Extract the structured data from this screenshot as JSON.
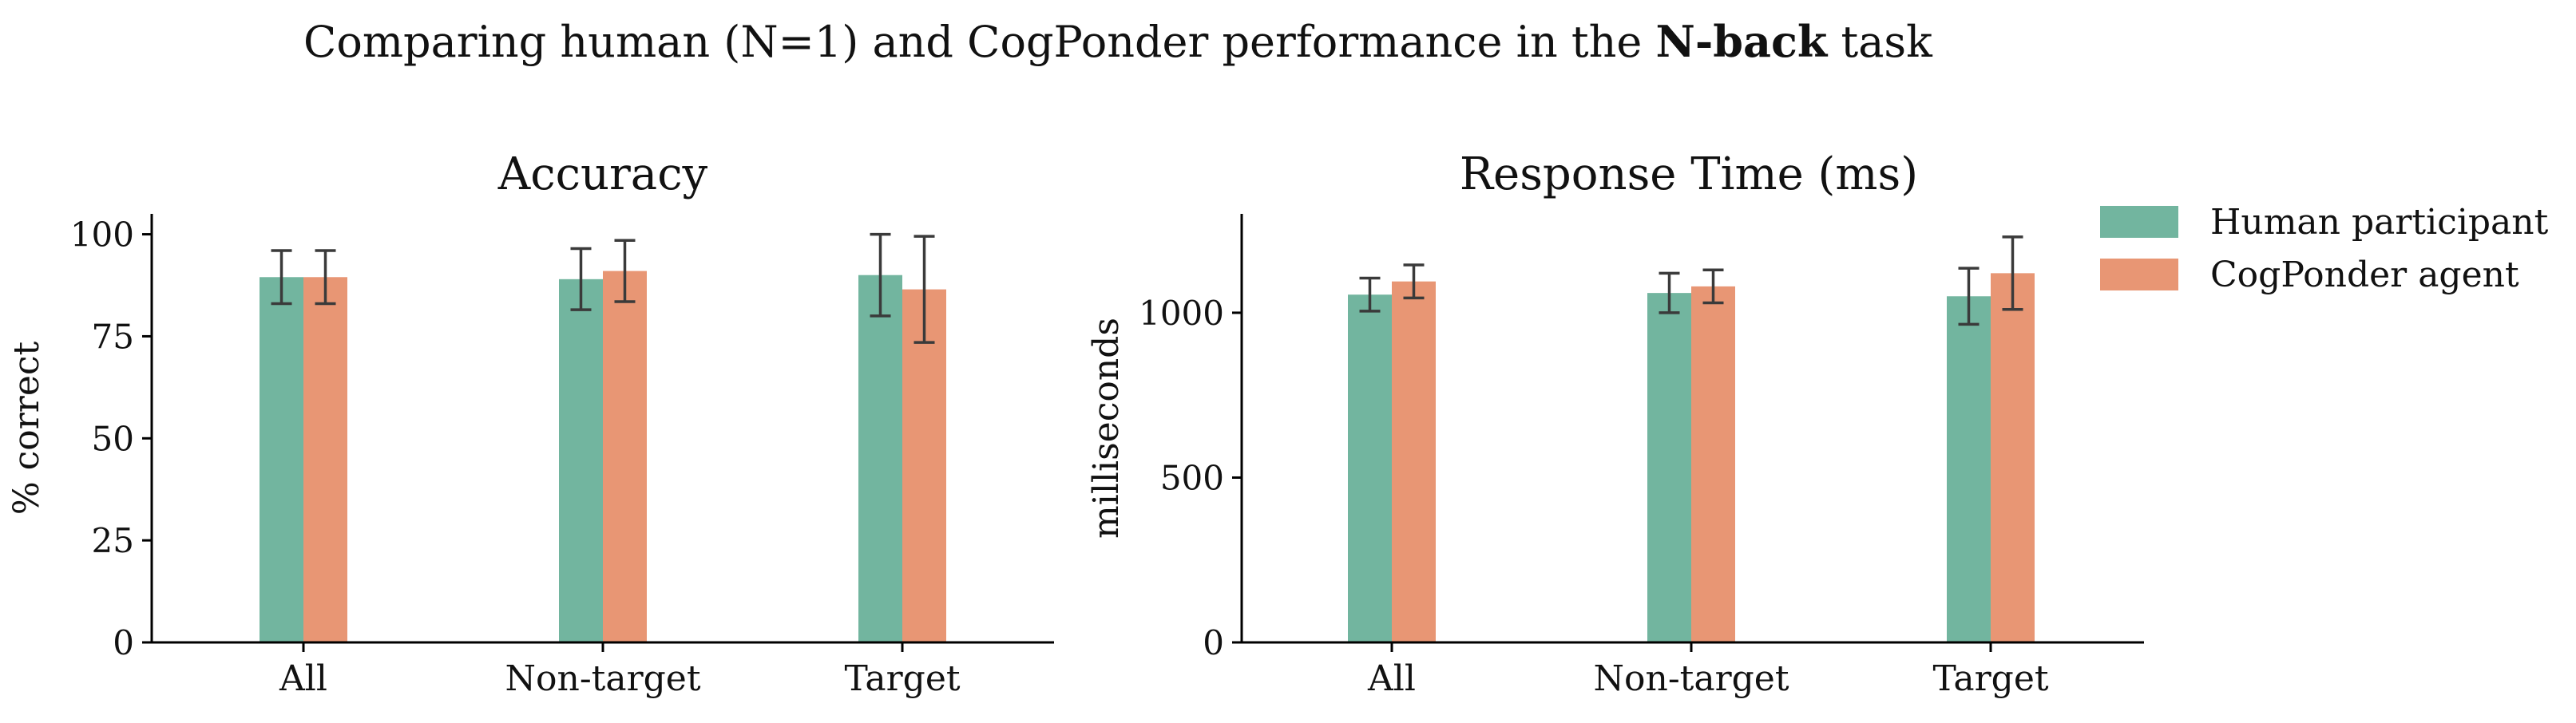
{
  "figure": {
    "title_prefix": "Comparing human (N=1) and CogPonder performance in the ",
    "title_bold": "N-back",
    "title_suffix": " task"
  },
  "legend": [
    {
      "label": "Human participant",
      "color": "#72b59f"
    },
    {
      "label": "CogPonder agent",
      "color": "#e89674"
    }
  ],
  "chart_data": [
    {
      "type": "bar",
      "title": "Accuracy",
      "xlabel": "",
      "ylabel": "% correct",
      "categories": [
        "All",
        "Non-target",
        "Target"
      ],
      "ylim": [
        0,
        105
      ],
      "yticks": [
        0,
        25,
        50,
        75,
        100
      ],
      "series": [
        {
          "name": "Human participant",
          "color": "#72b59f",
          "values": [
            89.5,
            89,
            90
          ],
          "errors": [
            6.5,
            7.5,
            10
          ]
        },
        {
          "name": "CogPonder agent",
          "color": "#e89674",
          "values": [
            89.5,
            91,
            86.5
          ],
          "errors": [
            6.5,
            7.5,
            13
          ]
        }
      ],
      "grid": false
    },
    {
      "type": "bar",
      "title": "Response Time (ms)",
      "xlabel": "",
      "ylabel": "milliseconds",
      "categories": [
        "All",
        "Non-target",
        "Target"
      ],
      "ylim": [
        0,
        1300
      ],
      "yticks": [
        0,
        500,
        1000
      ],
      "series": [
        {
          "name": "Human participant",
          "color": "#72b59f",
          "values": [
            1055,
            1060,
            1050
          ],
          "errors": [
            50,
            60,
            85
          ]
        },
        {
          "name": "CogPonder agent",
          "color": "#e89674",
          "values": [
            1095,
            1080,
            1120
          ],
          "errors": [
            50,
            50,
            110
          ]
        }
      ],
      "grid": false,
      "legend_position": "outside-top-right"
    }
  ]
}
